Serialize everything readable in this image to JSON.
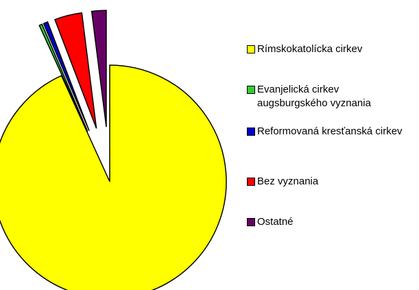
{
  "chart_data": {
    "type": "pie",
    "categories": [
      "Rímskokatolícka cirkev",
      "Evanjelická cirkev augsburgského vyznania",
      "Reformovaná kresťanská cirkev",
      "Bez vyznania",
      "Ostatné"
    ],
    "values": [
      93.2,
      0.4,
      0.6,
      3.8,
      2.0
    ],
    "colors": [
      "#ffff00",
      "#33cc33",
      "#0000cc",
      "#ff0000",
      "#660066"
    ],
    "exploded": [
      false,
      true,
      true,
      true,
      true
    ],
    "legend": "right"
  }
}
